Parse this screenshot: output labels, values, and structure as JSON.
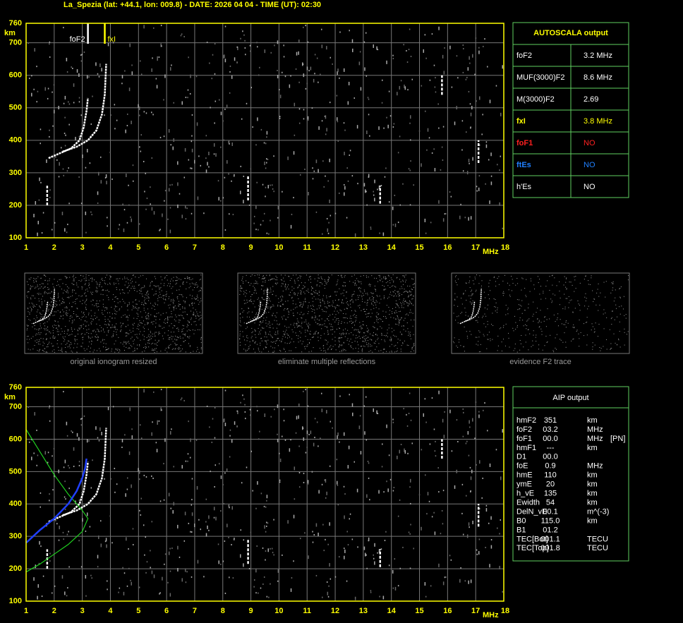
{
  "header": "La_Spezia (lat: +44.1, lon: 009.8) - DATE: 2026 04 04 - TIME (UT): 02:30",
  "chart_data": [
    {
      "type": "ionogram",
      "x_unit": "MHz",
      "y_unit": "km",
      "xlim": [
        1,
        18
      ],
      "ylim": [
        100,
        760
      ],
      "xticks": [
        1,
        2,
        3,
        4,
        5,
        6,
        7,
        8,
        9,
        10,
        11,
        12,
        13,
        14,
        15,
        16,
        17,
        18
      ],
      "yticks": [
        100,
        200,
        300,
        400,
        500,
        600,
        700,
        760
      ],
      "grid": true,
      "annotations": [
        {
          "text": "foF2",
          "x": 3.2,
          "color": "#ffffff"
        },
        {
          "text": "fxI",
          "x": 3.8,
          "color": "#ffff00"
        }
      ]
    },
    {
      "type": "ionogram",
      "x_unit": "MHz",
      "y_unit": "km",
      "xlim": [
        1,
        18
      ],
      "ylim": [
        100,
        760
      ],
      "xticks": [
        1,
        2,
        3,
        4,
        5,
        6,
        7,
        8,
        9,
        10,
        11,
        12,
        13,
        14,
        15,
        16,
        17,
        18
      ],
      "yticks": [
        100,
        200,
        300,
        400,
        500,
        600,
        700,
        760
      ],
      "grid": true
    }
  ],
  "thumbnails": [
    "original ionogram resized",
    "eliminate multiple reflections",
    "evidence F2 trace"
  ],
  "autoscala": {
    "title": "AUTOSCALA output",
    "rows": [
      {
        "label": "foF2",
        "value": "3.2 MHz",
        "color": "#ffffff"
      },
      {
        "label": "MUF(3000)F2",
        "value": "8.6 MHz",
        "color": "#ffffff"
      },
      {
        "label": "M(3000)F2",
        "value": "2.69",
        "color": "#ffffff"
      },
      {
        "label": "fxI",
        "value": "3.8 MHz",
        "color": "#ffff00"
      },
      {
        "label": "foF1",
        "value": "NO",
        "color": "#ff2020"
      },
      {
        "label": "ftEs",
        "value": "NO",
        "color": "#2080ff"
      },
      {
        "label": "h'Es",
        "value": "NO",
        "color": "#ffffff"
      }
    ]
  },
  "aip": {
    "title": "AIP output",
    "rows": [
      {
        "name": "hmF2",
        "value": "351",
        "unit": "km"
      },
      {
        "name": "foF2",
        "value": "03.2",
        "unit": "MHz"
      },
      {
        "name": "foF1",
        "value": "00.0",
        "unit": "MHz",
        "flag": "[PN]"
      },
      {
        "name": "hmF1",
        "value": "---",
        "unit": "km"
      },
      {
        "name": "D1",
        "value": "00.0"
      },
      {
        "name": "foE",
        "value": "0.9",
        "unit": "MHz"
      },
      {
        "name": "hmE",
        "value": "110",
        "unit": "km"
      },
      {
        "name": "ymE",
        "value": "20",
        "unit": "km"
      },
      {
        "name": "h_vE",
        "value": "135",
        "unit": "km"
      },
      {
        "name": "Ewidth",
        "value": "54",
        "unit": "km"
      },
      {
        "name": "DelN_vE",
        "value": "00.1",
        "unit": "m^(-3)"
      },
      {
        "name": "B0",
        "value": "115.0",
        "unit": "km"
      },
      {
        "name": "B1",
        "value": "01.2"
      },
      {
        "name": "TEC[Bot]",
        "value": "001.1",
        "unit": "TECU"
      },
      {
        "name": "TEC[Top]",
        "value": "001.8",
        "unit": "TECU"
      }
    ]
  }
}
